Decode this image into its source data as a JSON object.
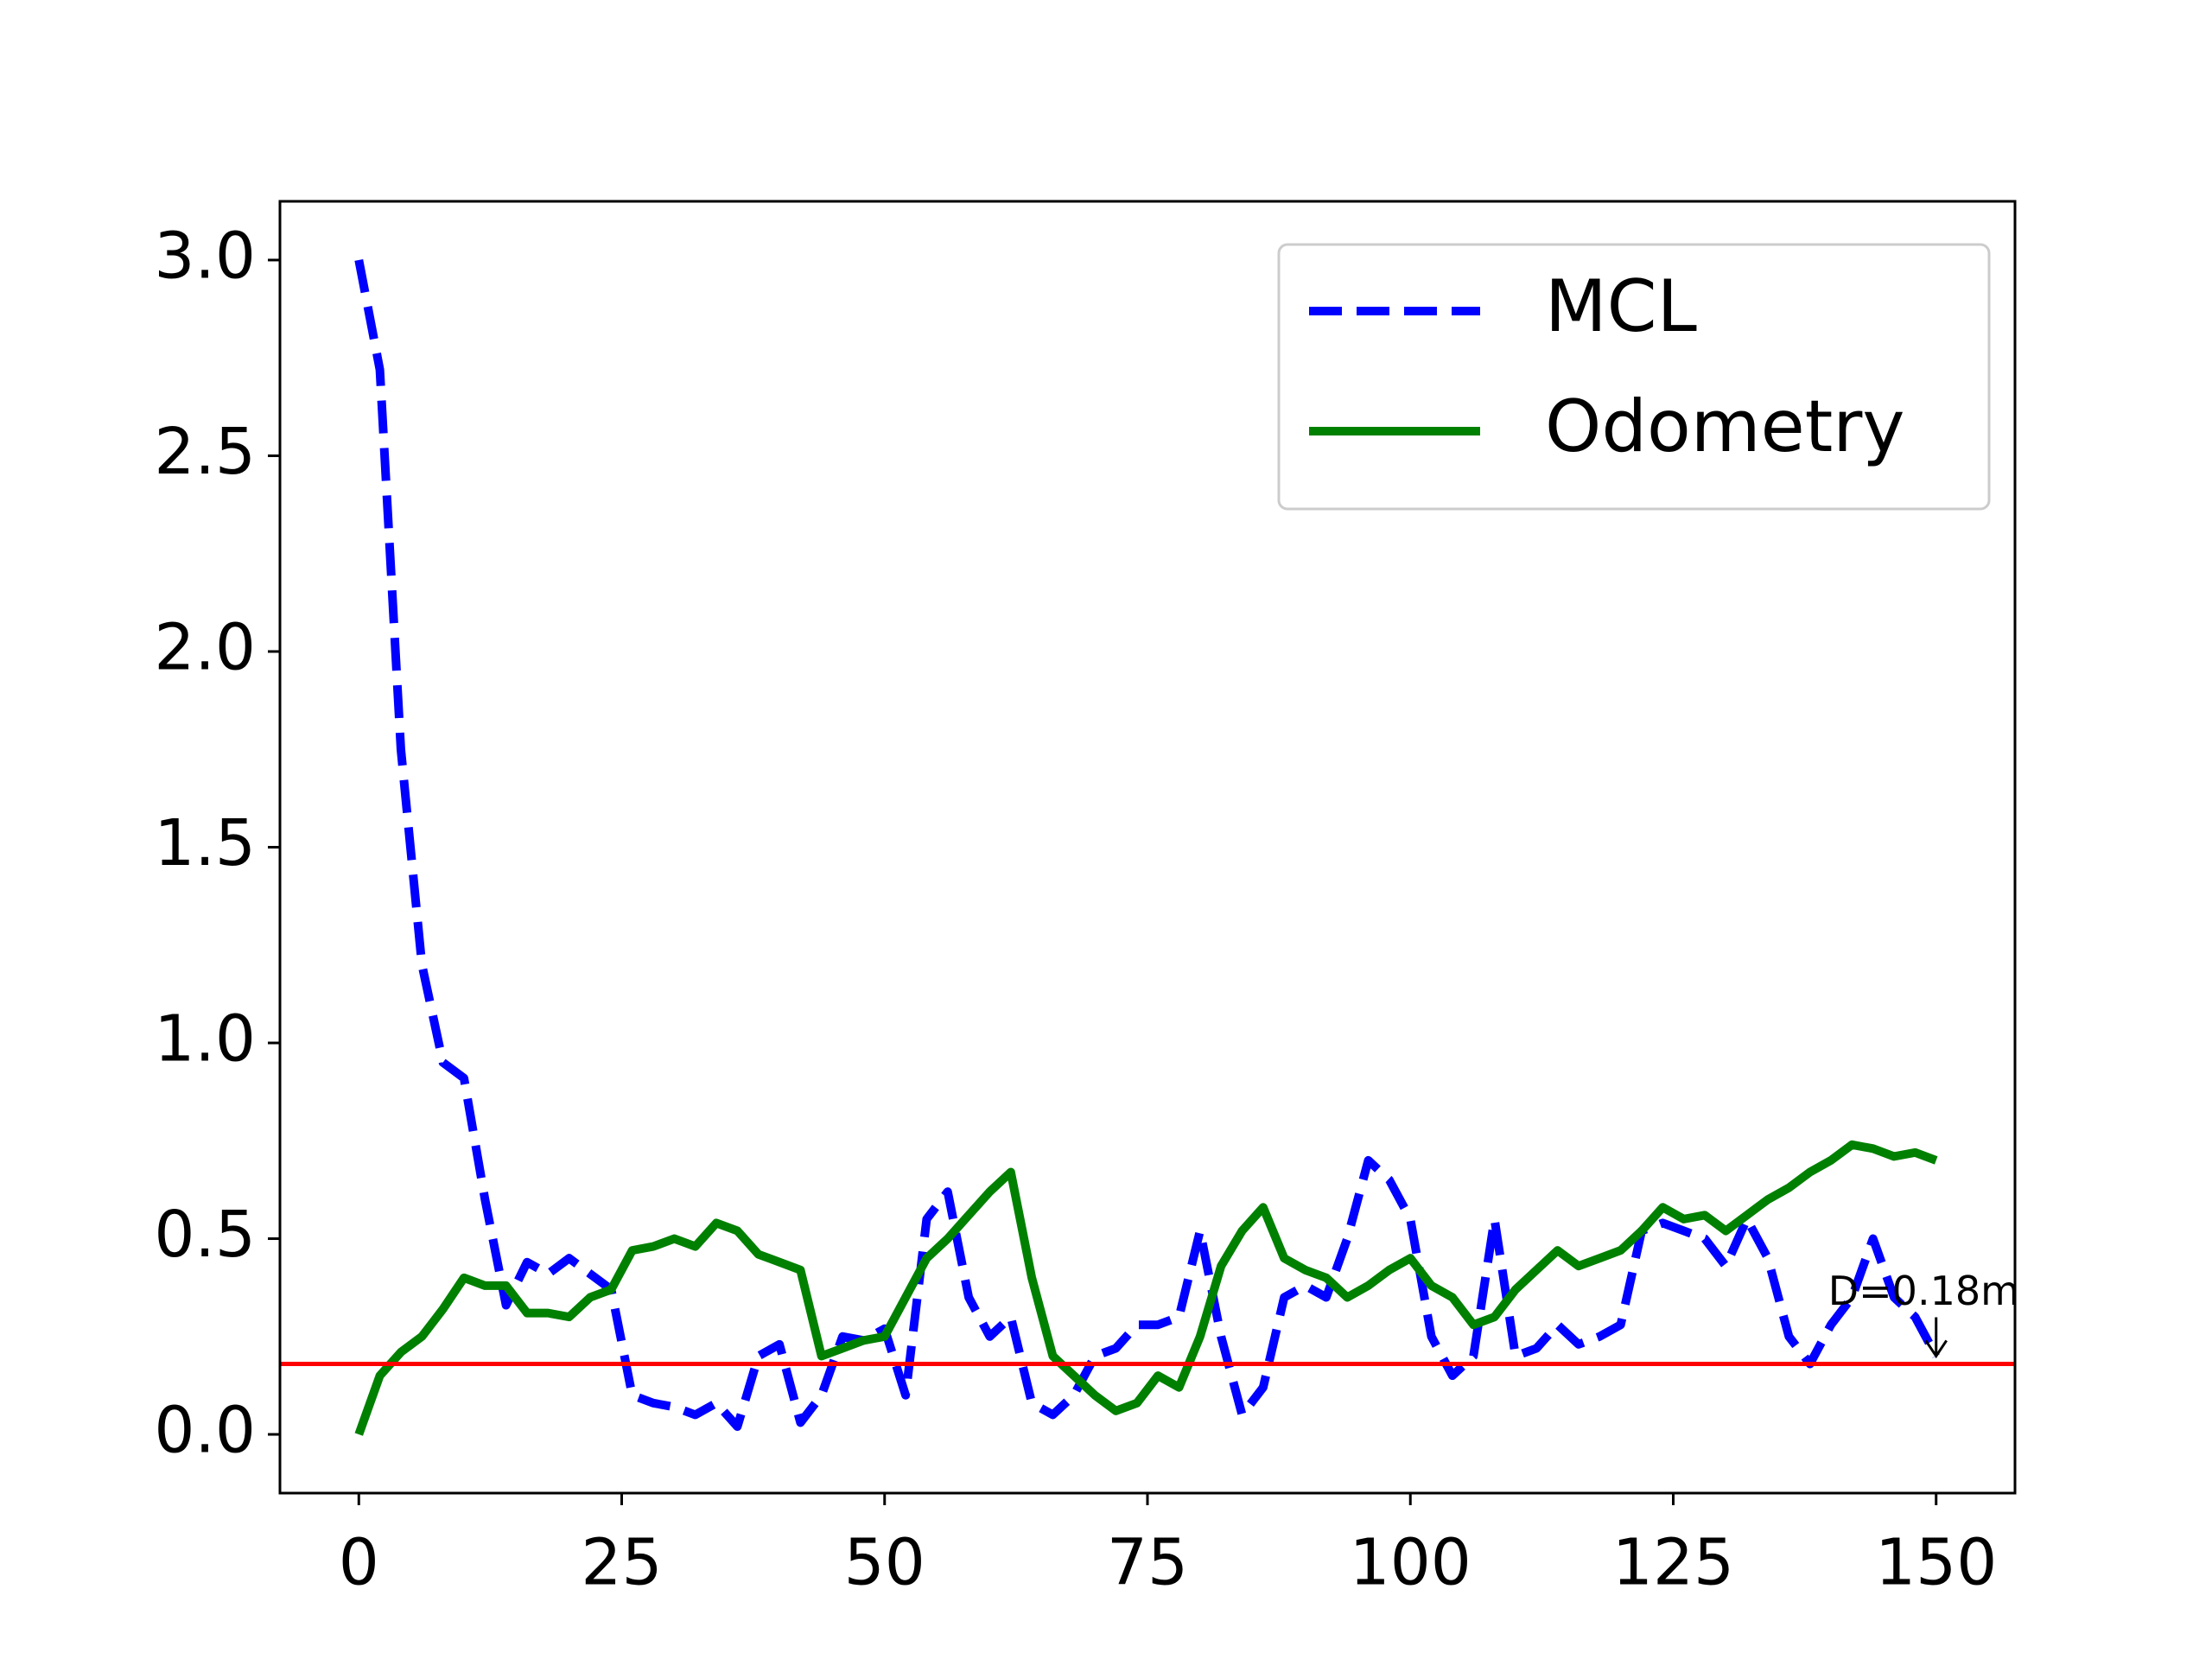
{
  "chart_data": {
    "type": "line",
    "x": [
      0,
      2,
      4,
      6,
      8,
      10,
      12,
      14,
      16,
      18,
      20,
      22,
      24,
      26,
      28,
      30,
      32,
      34,
      36,
      38,
      40,
      42,
      44,
      46,
      48,
      50,
      52,
      54,
      56,
      58,
      60,
      62,
      64,
      66,
      68,
      70,
      72,
      74,
      76,
      78,
      80,
      82,
      84,
      86,
      88,
      90,
      92,
      94,
      96,
      98,
      100,
      102,
      104,
      106,
      108,
      110,
      112,
      114,
      116,
      118,
      120,
      122,
      124,
      126,
      128,
      130,
      132,
      134,
      136,
      138,
      140,
      142,
      144,
      146,
      148,
      150
    ],
    "series": [
      {
        "name": "MCL",
        "color": "#0000ff",
        "dashed": true,
        "values": [
          3.0,
          2.72,
          1.75,
          1.2,
          0.95,
          0.91,
          0.6,
          0.33,
          0.44,
          0.41,
          0.45,
          0.41,
          0.37,
          0.1,
          0.08,
          0.07,
          0.05,
          0.08,
          0.02,
          0.2,
          0.23,
          0.03,
          0.1,
          0.25,
          0.24,
          0.27,
          0.1,
          0.55,
          0.62,
          0.35,
          0.25,
          0.3,
          0.08,
          0.05,
          0.1,
          0.2,
          0.22,
          0.28,
          0.28,
          0.3,
          0.52,
          0.25,
          0.05,
          0.12,
          0.35,
          0.38,
          0.35,
          0.5,
          0.7,
          0.65,
          0.55,
          0.25,
          0.15,
          0.2,
          0.55,
          0.2,
          0.22,
          0.28,
          0.23,
          0.25,
          0.28,
          0.52,
          0.54,
          0.52,
          0.5,
          0.43,
          0.55,
          0.45,
          0.25,
          0.18,
          0.28,
          0.35,
          0.5,
          0.35,
          0.3,
          0.2
        ]
      },
      {
        "name": "Odometry",
        "color": "#008000",
        "dashed": false,
        "values": [
          0.0,
          0.15,
          0.21,
          0.25,
          0.32,
          0.4,
          0.38,
          0.38,
          0.31,
          0.31,
          0.3,
          0.35,
          0.37,
          0.47,
          0.48,
          0.5,
          0.48,
          0.54,
          0.52,
          0.46,
          0.44,
          0.42,
          0.2,
          0.22,
          0.24,
          0.25,
          0.35,
          0.45,
          0.5,
          0.56,
          0.62,
          0.67,
          0.4,
          0.2,
          0.15,
          0.1,
          0.06,
          0.08,
          0.15,
          0.12,
          0.25,
          0.43,
          0.52,
          0.58,
          0.45,
          0.42,
          0.4,
          0.35,
          0.38,
          0.42,
          0.45,
          0.38,
          0.35,
          0.28,
          0.3,
          0.37,
          0.42,
          0.47,
          0.43,
          0.45,
          0.47,
          0.52,
          0.58,
          0.55,
          0.56,
          0.52,
          0.56,
          0.6,
          0.63,
          0.67,
          0.7,
          0.74,
          0.73,
          0.71,
          0.72,
          0.7
        ]
      }
    ],
    "hline": {
      "y": 0.18,
      "color": "#ff0000"
    },
    "annotation": {
      "text": "D=0.18m",
      "x": 150,
      "y": 0.2
    },
    "xlim": [
      -7.5,
      157.5
    ],
    "ylim": [
      -0.15,
      3.15
    ],
    "xticks": [
      0,
      25,
      50,
      75,
      100,
      125,
      150
    ],
    "yticks": [
      {
        "value": 0,
        "label": "0.0"
      },
      0.5,
      {
        "value": 1,
        "label": "1.0"
      },
      1.5,
      {
        "value": 2,
        "label": "2.0"
      },
      2.5,
      {
        "value": 3,
        "label": "3.0"
      }
    ],
    "legend": "upper right"
  }
}
